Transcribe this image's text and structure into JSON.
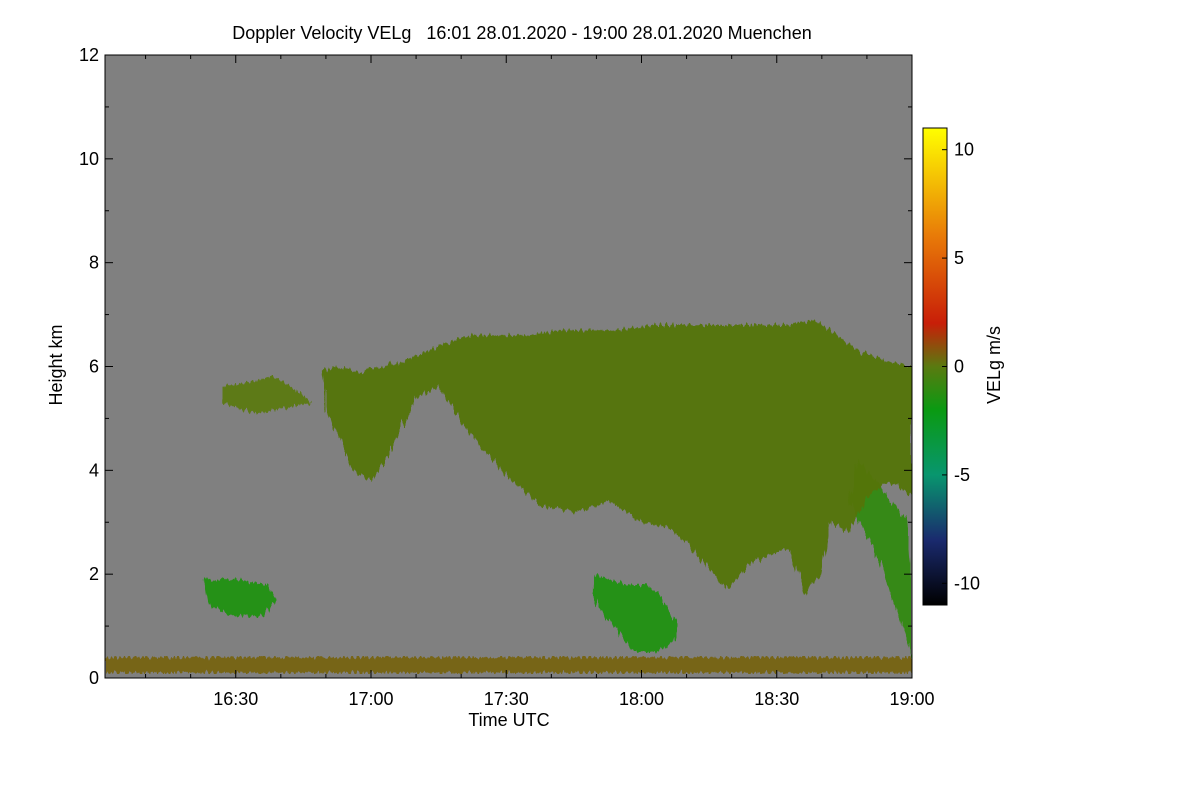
{
  "chart_data": {
    "type": "heatmap",
    "title": "Doppler Velocity VELg   16:01 28.01.2020 - 19:00 28.01.2020 Muenchen",
    "xlabel": "Time UTC",
    "ylabel": "Height km",
    "colorbar_label": "VELg m/s",
    "xlim_minutes_utc": [
      961,
      1140
    ],
    "ylim_km": [
      0,
      12
    ],
    "x_ticks": [
      {
        "label": "16:30",
        "minutes": 990
      },
      {
        "label": "17:00",
        "minutes": 1020
      },
      {
        "label": "17:30",
        "minutes": 1050
      },
      {
        "label": "18:00",
        "minutes": 1080
      },
      {
        "label": "18:30",
        "minutes": 1110
      },
      {
        "label": "19:00",
        "minutes": 1140
      }
    ],
    "y_ticks": [
      {
        "label": "0",
        "value": 0
      },
      {
        "label": "2",
        "value": 2
      },
      {
        "label": "4",
        "value": 4
      },
      {
        "label": "6",
        "value": 6
      },
      {
        "label": "8",
        "value": 8
      },
      {
        "label": "10",
        "value": 10
      },
      {
        "label": "12",
        "value": 12
      }
    ],
    "colorbar_range": [
      -11,
      11
    ],
    "colorbar_ticks": [
      {
        "label": "10",
        "value": 10
      },
      {
        "label": "5",
        "value": 5
      },
      {
        "label": "0",
        "value": 0
      },
      {
        "label": "-5",
        "value": -5
      },
      {
        "label": "-10",
        "value": -10
      }
    ],
    "colorscale": [
      {
        "value": -11,
        "color": "#000000"
      },
      {
        "value": -8,
        "color": "#1a2a6e"
      },
      {
        "value": -5,
        "color": "#08966e"
      },
      {
        "value": -2,
        "color": "#0a9a12"
      },
      {
        "value": 0,
        "color": "#5a7a10"
      },
      {
        "value": 2,
        "color": "#c81e08"
      },
      {
        "value": 6,
        "color": "#e87a08"
      },
      {
        "value": 11,
        "color": "#ffff00"
      }
    ],
    "background_color": "#808080",
    "echo_regions": [
      {
        "name": "main-upper-cloud",
        "mean_velocity": -1,
        "outline": [
          [
            1009,
            5.9
          ],
          [
            1012,
            6.0
          ],
          [
            1018,
            5.9
          ],
          [
            1027,
            6.1
          ],
          [
            1035,
            6.4
          ],
          [
            1042,
            6.6
          ],
          [
            1055,
            6.6
          ],
          [
            1062,
            6.7
          ],
          [
            1075,
            6.7
          ],
          [
            1083,
            6.8
          ],
          [
            1095,
            6.8
          ],
          [
            1106,
            6.8
          ],
          [
            1112,
            6.8
          ],
          [
            1118,
            6.9
          ],
          [
            1122,
            6.7
          ],
          [
            1128,
            6.3
          ],
          [
            1135,
            6.1
          ],
          [
            1140,
            6.0
          ],
          [
            1140,
            3.5
          ],
          [
            1135,
            3.8
          ],
          [
            1130,
            3.5
          ],
          [
            1126,
            2.8
          ],
          [
            1122,
            3.0
          ],
          [
            1120,
            2.0
          ],
          [
            1116,
            1.6
          ],
          [
            1113,
            2.5
          ],
          [
            1109,
            2.4
          ],
          [
            1104,
            2.2
          ],
          [
            1099,
            1.7
          ],
          [
            1094,
            2.2
          ],
          [
            1090,
            2.6
          ],
          [
            1086,
            2.9
          ],
          [
            1080,
            3.0
          ],
          [
            1073,
            3.4
          ],
          [
            1065,
            3.2
          ],
          [
            1058,
            3.3
          ],
          [
            1050,
            3.9
          ],
          [
            1042,
            4.7
          ],
          [
            1035,
            5.6
          ],
          [
            1030,
            5.4
          ],
          [
            1024,
            4.3
          ],
          [
            1020,
            3.8
          ],
          [
            1016,
            4.0
          ],
          [
            1012,
            4.8
          ],
          [
            1010,
            5.2
          ]
        ]
      },
      {
        "name": "western-upper-patch",
        "mean_velocity": 0,
        "outline": [
          [
            987,
            5.6
          ],
          [
            993,
            5.7
          ],
          [
            999,
            5.8
          ],
          [
            1004,
            5.5
          ],
          [
            1007,
            5.3
          ],
          [
            1001,
            5.2
          ],
          [
            994,
            5.1
          ],
          [
            987,
            5.3
          ]
        ]
      },
      {
        "name": "eastern-descending-streak",
        "mean_velocity": -1,
        "outline": [
          [
            1128,
            4.2
          ],
          [
            1134,
            3.6
          ],
          [
            1139,
            3.0
          ],
          [
            1140,
            1.8
          ],
          [
            1140,
            0.4
          ],
          [
            1137,
            1.2
          ],
          [
            1133,
            2.2
          ],
          [
            1129,
            2.9
          ],
          [
            1126,
            3.4
          ]
        ]
      },
      {
        "name": "low-cloud-center",
        "mean_velocity": -1.5,
        "outline": [
          [
            1069,
            2.0
          ],
          [
            1073,
            1.9
          ],
          [
            1076,
            1.8
          ],
          [
            1081,
            1.8
          ],
          [
            1084,
            1.6
          ],
          [
            1088,
            1.0
          ],
          [
            1087,
            0.7
          ],
          [
            1083,
            0.5
          ],
          [
            1078,
            0.5
          ],
          [
            1075,
            0.9
          ],
          [
            1071,
            1.3
          ],
          [
            1069,
            1.6
          ]
        ]
      },
      {
        "name": "low-cloud-west",
        "mean_velocity": -1.5,
        "outline": [
          [
            983,
            1.9
          ],
          [
            990,
            1.9
          ],
          [
            997,
            1.8
          ],
          [
            999,
            1.5
          ],
          [
            996,
            1.2
          ],
          [
            989,
            1.2
          ],
          [
            984,
            1.4
          ]
        ]
      },
      {
        "name": "low-clutter-band",
        "mean_velocity": 0.5,
        "outline": [
          [
            961,
            0.4
          ],
          [
            1140,
            0.4
          ],
          [
            1140,
            0.1
          ],
          [
            961,
            0.1
          ]
        ]
      }
    ]
  }
}
